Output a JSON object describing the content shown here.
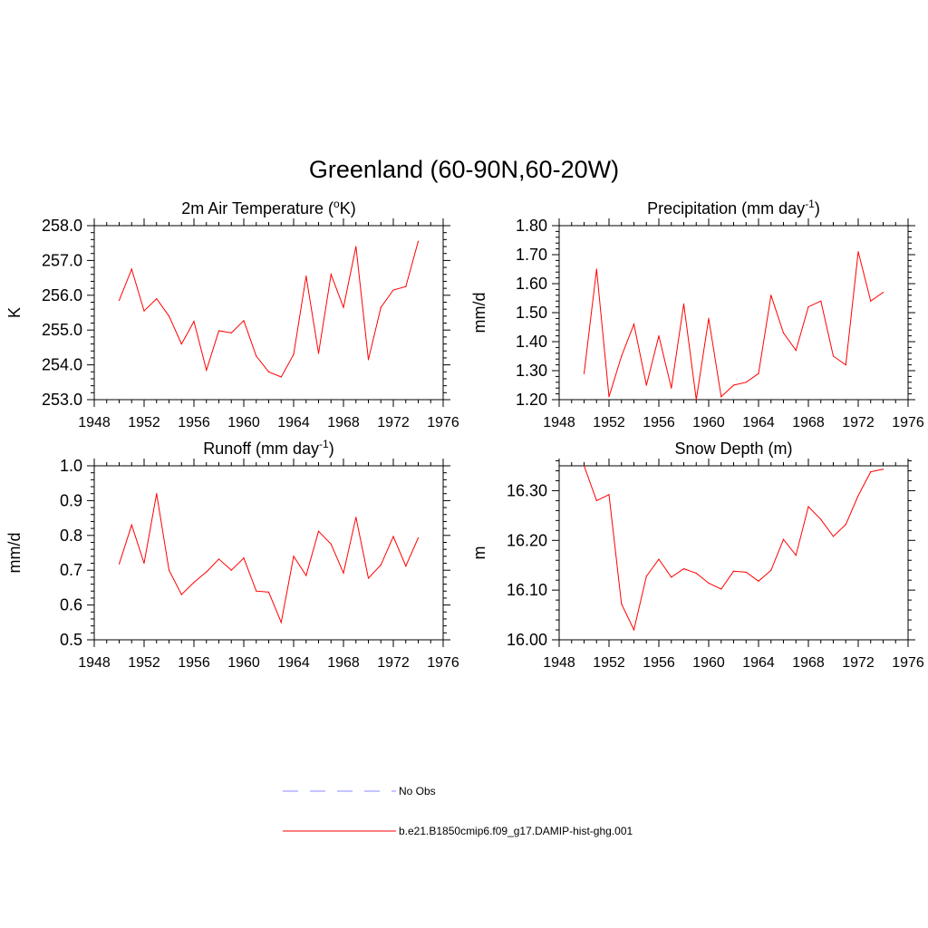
{
  "figure": {
    "title": "Greenland (60-90N,60-20W)",
    "line_color": "#ff0000",
    "obs_color": "#a0a0ff"
  },
  "legend": {
    "obs_label": "No Obs",
    "model_label": "b.e21.B1850cmip6.f09_g17.DAMIP-hist-ghg.001"
  },
  "chart_data": [
    {
      "type": "line",
      "title_main": "2m Air Temperature (",
      "title_sup": "o",
      "title_tail": "K)",
      "ylabel": "K",
      "xlim": [
        1948,
        1976
      ],
      "ylim": [
        253.0,
        258.0
      ],
      "xticks": [
        1948,
        1952,
        1956,
        1960,
        1964,
        1968,
        1972,
        1976
      ],
      "yticks": [
        253.0,
        254.0,
        255.0,
        256.0,
        257.0,
        258.0
      ],
      "yminor": 0.2,
      "decimals": 1,
      "series": [
        {
          "x": [
            1950,
            1951,
            1952,
            1953,
            1954,
            1955,
            1956,
            1957,
            1958,
            1959,
            1960,
            1961,
            1962,
            1963,
            1964,
            1965,
            1966,
            1967,
            1968,
            1969,
            1970,
            1971,
            1972,
            1973,
            1974
          ],
          "values": [
            255.85,
            256.75,
            255.55,
            255.9,
            255.4,
            254.6,
            255.25,
            253.85,
            254.98,
            254.92,
            255.27,
            254.25,
            253.8,
            253.65,
            254.3,
            256.55,
            254.33,
            256.6,
            255.65,
            257.4,
            254.15,
            255.65,
            256.15,
            256.25,
            257.55
          ]
        }
      ]
    },
    {
      "type": "line",
      "title_main": "Precipitation (mm day",
      "title_sup": "-1",
      "title_tail": ")",
      "ylabel": "mm/d",
      "xlim": [
        1948,
        1976
      ],
      "ylim": [
        1.2,
        1.8
      ],
      "xticks": [
        1948,
        1952,
        1956,
        1960,
        1964,
        1968,
        1972,
        1976
      ],
      "yticks": [
        1.2,
        1.3,
        1.4,
        1.5,
        1.6,
        1.7,
        1.8
      ],
      "yminor": 0.02,
      "decimals": 2,
      "series": [
        {
          "x": [
            1950,
            1951,
            1952,
            1953,
            1954,
            1955,
            1956,
            1957,
            1958,
            1959,
            1960,
            1961,
            1962,
            1963,
            1964,
            1965,
            1966,
            1967,
            1968,
            1969,
            1970,
            1971,
            1972,
            1973,
            1974
          ],
          "values": [
            1.29,
            1.65,
            1.21,
            1.35,
            1.46,
            1.25,
            1.42,
            1.24,
            1.53,
            1.2,
            1.48,
            1.21,
            1.25,
            1.26,
            1.29,
            1.56,
            1.43,
            1.37,
            1.52,
            1.54,
            1.35,
            1.32,
            1.71,
            1.54,
            1.57
          ]
        }
      ]
    },
    {
      "type": "line",
      "title_main": "Runoff (mm day",
      "title_sup": "-1",
      "title_tail": ")",
      "ylabel": "mm/d",
      "xlim": [
        1948,
        1976
      ],
      "ylim": [
        0.5,
        1.0
      ],
      "xticks": [
        1948,
        1952,
        1956,
        1960,
        1964,
        1968,
        1972,
        1976
      ],
      "yticks": [
        0.5,
        0.6,
        0.7,
        0.8,
        0.9,
        1.0
      ],
      "yminor": 0.02,
      "decimals": 1,
      "series": [
        {
          "x": [
            1950,
            1951,
            1952,
            1953,
            1954,
            1955,
            1956,
            1957,
            1958,
            1959,
            1960,
            1961,
            1962,
            1963,
            1964,
            1965,
            1966,
            1967,
            1968,
            1969,
            1970,
            1971,
            1972,
            1973,
            1974
          ],
          "values": [
            0.718,
            0.83,
            0.72,
            0.92,
            0.7,
            0.63,
            0.665,
            0.695,
            0.732,
            0.7,
            0.735,
            0.64,
            0.637,
            0.55,
            0.74,
            0.685,
            0.812,
            0.775,
            0.692,
            0.852,
            0.677,
            0.715,
            0.797,
            0.712,
            0.793
          ]
        }
      ]
    },
    {
      "type": "line",
      "title_main": "Snow Depth (m)",
      "title_sup": "",
      "title_tail": "",
      "ylabel": "m",
      "xlim": [
        1948,
        1976
      ],
      "ylim": [
        16.0,
        16.35
      ],
      "xticks": [
        1948,
        1952,
        1956,
        1960,
        1964,
        1968,
        1972,
        1976
      ],
      "yticks": [
        16.0,
        16.1,
        16.2,
        16.3
      ],
      "yminor": 0.02,
      "decimals": 2,
      "series": [
        {
          "x": [
            1950,
            1951,
            1952,
            1953,
            1954,
            1955,
            1956,
            1957,
            1958,
            1959,
            1960,
            1961,
            1962,
            1963,
            1964,
            1965,
            1966,
            1967,
            1968,
            1969,
            1970,
            1971,
            1972,
            1973,
            1974
          ],
          "values": [
            16.35,
            16.28,
            16.292,
            16.072,
            16.02,
            16.128,
            16.162,
            16.126,
            16.143,
            16.134,
            16.114,
            16.102,
            16.138,
            16.136,
            16.118,
            16.14,
            16.202,
            16.17,
            16.268,
            16.242,
            16.208,
            16.232,
            16.29,
            16.338,
            16.343
          ]
        }
      ]
    }
  ]
}
